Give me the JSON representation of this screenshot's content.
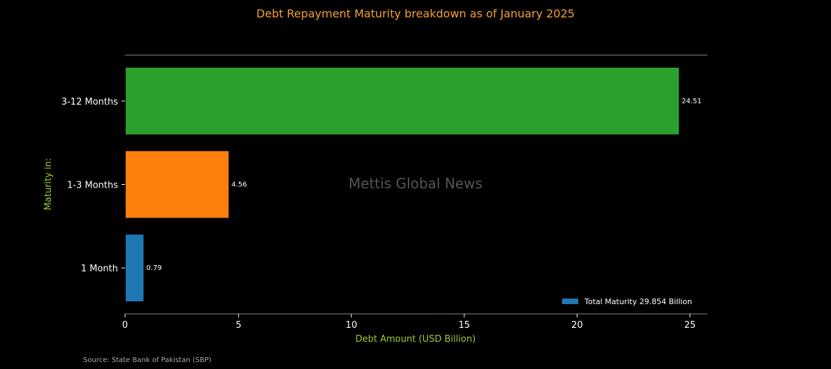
{
  "chart_data": {
    "type": "bar",
    "orientation": "horizontal",
    "title": "Debt Repayment Maturity breakdown as of January 2025",
    "xlabel": "Debt Amount (USD Billion)",
    "ylabel": "Maturity in:",
    "categories": [
      "1 Month",
      "1-3 Months",
      "3-12 Months"
    ],
    "values": [
      0.79,
      4.56,
      24.51
    ],
    "value_labels": [
      "0.79",
      "4.56",
      "24.51"
    ],
    "bar_colors": [
      "#1f77b4",
      "#ff7f0e",
      "#2ca02c"
    ],
    "xlim": [
      0,
      25.8
    ],
    "xticks": [
      0,
      5,
      10,
      15,
      20,
      25
    ],
    "legend": {
      "label": "Total Maturity 29.854 Billion",
      "color": "#1f77b4",
      "placement": "lower-right"
    },
    "grid": false
  },
  "watermark": "Mettis Global News",
  "source": "Source: State Bank of Pakistan (SBP)",
  "colors": {
    "background": "#000000",
    "title": "#f5a030",
    "axis_label": "#9acd32",
    "tick_text": "#ffffff",
    "spine": "#888888",
    "watermark": "#555555",
    "source": "#aaaaaa"
  }
}
